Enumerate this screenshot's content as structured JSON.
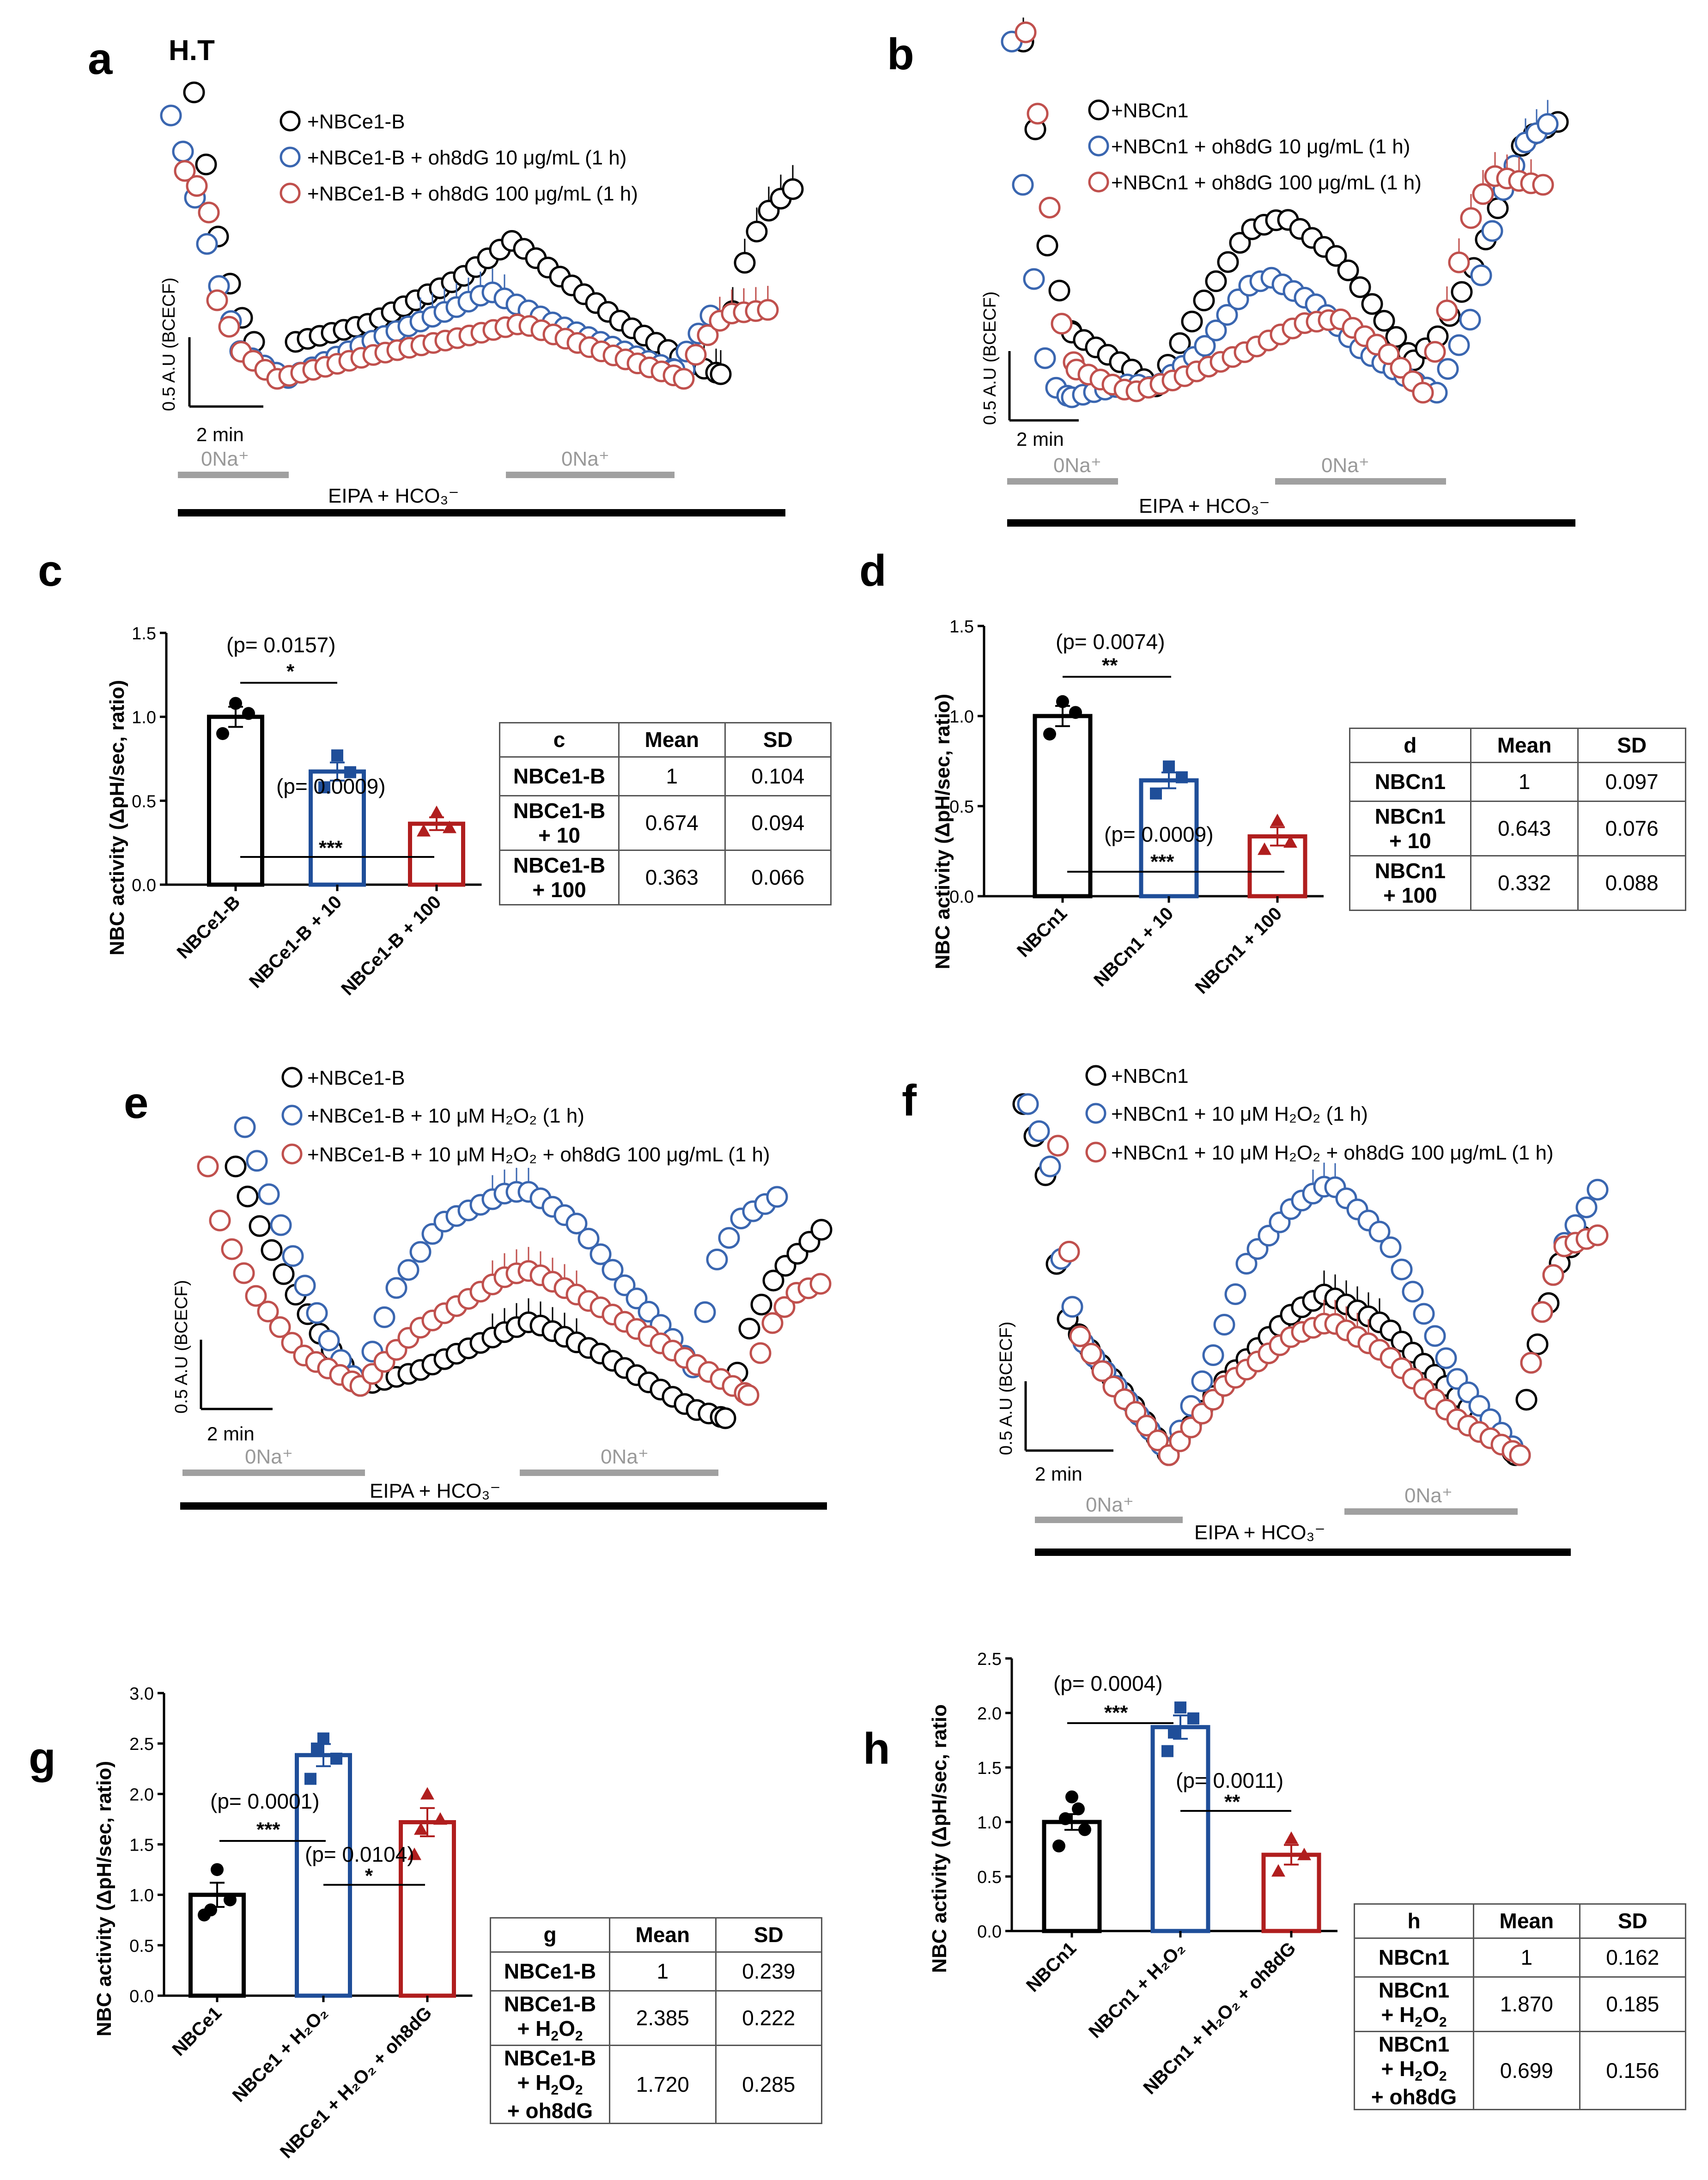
{
  "colors": {
    "black": "#000000",
    "blue": "#3a66b0",
    "red": "#c0504d",
    "blue_dark": "#1f4e99",
    "red_dark": "#b01e1e",
    "gray": "#a0a0a0"
  },
  "traces": [
    {
      "label": "a",
      "subtitle": "H.T",
      "legend": [
        "+NBCe1-B",
        "+NBCe1-B + oh8dG 10 μg/mL  (1 h)",
        "+NBCe1-B + oh8dG 100 μg/mL (1 h)"
      ],
      "scale_y": "0.5 A.U (BCECF)",
      "scale_x": "2 min",
      "bar1": "0Na⁺",
      "bar2": "0Na⁺",
      "bottom": "EIPA + HCO₃⁻"
    },
    {
      "label": "b",
      "legend": [
        "+NBCn1",
        "+NBCn1 + oh8dG 10 μg/mL (1 h)",
        "+NBCn1 + oh8dG 100 μg/mL (1 h)"
      ],
      "scale_y": "0.5 A.U (BCECF)",
      "scale_x": "2 min",
      "bar1": "0Na⁺",
      "bar2": "0Na⁺",
      "bottom": "EIPA + HCO₃⁻"
    },
    {
      "label": "e",
      "legend": [
        "+NBCe1-B",
        "+NBCe1-B + 10 μM H₂O₂ (1 h)",
        "+NBCe1-B + 10 μM H₂O₂ + oh8dG 100 μg/mL (1 h)"
      ],
      "scale_y": "0.5 A.U (BCECF)",
      "scale_x": "2 min",
      "bar1": "0Na⁺",
      "bar2": "0Na⁺",
      "bottom": "EIPA + HCO₃⁻"
    },
    {
      "label": "f",
      "legend": [
        "+NBCn1",
        "+NBCn1 + 10 μM H₂O₂ (1 h)",
        "+NBCn1 + 10 μM H₂O₂ + oh8dG 100 μg/mL (1 h)"
      ],
      "scale_y": "0.5 A.U (BCECF)",
      "scale_x": "2 min",
      "bar1": "0Na⁺",
      "bar2": "0Na⁺",
      "bottom": "EIPA + HCO₃⁻"
    }
  ],
  "chart_data": [
    {
      "type": "bar",
      "panel": "c",
      "ylabel": "NBC activity  (ΔpH/sec, ratio)",
      "ylim": [
        0,
        1.5
      ],
      "yticks": [
        "0.0",
        "0.5",
        "1.0",
        "1.5"
      ],
      "categories": [
        "NBCe1-B",
        "NBCe1-B + 10",
        "NBCe1-B + 100"
      ],
      "values": [
        1.0,
        0.674,
        0.363
      ],
      "sem": [
        0.06,
        0.054,
        0.038
      ],
      "points": [
        [
          0.9,
          1.08,
          1.02
        ],
        [
          0.58,
          0.77,
          0.67
        ],
        [
          0.32,
          0.43,
          0.34
        ]
      ],
      "annotations": [
        {
          "pvalue": "(p= 0.0157)",
          "stars": "*"
        },
        {
          "pvalue": "(p= 0.0009)",
          "stars": "***"
        }
      ]
    },
    {
      "type": "bar",
      "panel": "d",
      "ylabel": "NBC activity  (ΔpH/sec, ratio)",
      "ylim": [
        0,
        1.5
      ],
      "yticks": [
        "0.0",
        "0.5",
        "1.0",
        "1.5"
      ],
      "categories": [
        "NBCn1",
        "NBCn1 + 10",
        "NBCn1 + 100"
      ],
      "values": [
        1.0,
        0.643,
        0.332
      ],
      "sem": [
        0.056,
        0.044,
        0.051
      ],
      "points": [
        [
          0.9,
          1.08,
          1.02
        ],
        [
          0.57,
          0.72,
          0.66
        ],
        [
          0.26,
          0.42,
          0.3
        ]
      ],
      "annotations": [
        {
          "pvalue": "(p= 0.0074)",
          "stars": "**"
        },
        {
          "pvalue": "(p= 0.0009)",
          "stars": "***"
        }
      ]
    },
    {
      "type": "bar",
      "panel": "g",
      "ylabel": "NBC activity  (ΔpH/sec, ratio)",
      "ylim": [
        0,
        3.0
      ],
      "yticks": [
        "0.0",
        "0.5",
        "1.0",
        "1.5",
        "2.0",
        "2.5",
        "3.0"
      ],
      "categories": [
        "NBCe1",
        "NBCe1 + H₂O₂",
        "NBCe1 + H₂O₂ + oh8dG"
      ],
      "values": [
        1.0,
        2.385,
        1.72
      ],
      "sem": [
        0.12,
        0.11,
        0.14
      ],
      "points": [
        [
          0.8,
          1.25,
          0.95,
          0.85
        ],
        [
          2.15,
          2.55,
          2.35,
          2.45
        ],
        [
          1.4,
          2.0,
          1.75,
          1.65
        ]
      ],
      "annotations": [
        {
          "pvalue": "(p= 0.0001)",
          "stars": "***"
        },
        {
          "pvalue": "(p= 0.0104)",
          "stars": "*"
        }
      ]
    },
    {
      "type": "bar",
      "panel": "h",
      "ylabel": "NBC activity  (ΔpH/sec, ratio",
      "ylim": [
        0,
        2.5
      ],
      "yticks": [
        "0.0",
        "0.5",
        "1.0",
        "1.5",
        "2.0",
        "2.5"
      ],
      "categories": [
        "NBCn1",
        "NBCn1 + H₂O₂",
        "NBCn1 + H₂O₂ + oh8dG"
      ],
      "values": [
        1.0,
        1.87,
        0.699
      ],
      "sem": [
        0.072,
        0.107,
        0.09
      ],
      "points": [
        [
          0.78,
          1.23,
          0.93,
          1.03,
          1.12
        ],
        [
          1.65,
          2.05,
          1.95,
          1.82
        ],
        [
          0.55,
          0.85,
          0.7
        ]
      ],
      "annotations": [
        {
          "pvalue": "(p= 0.0004)",
          "stars": "***"
        },
        {
          "pvalue": "(p= 0.0011)",
          "stars": "**"
        }
      ]
    }
  ],
  "tables": [
    {
      "panel": "c",
      "head": [
        "c",
        "Mean",
        "SD"
      ],
      "rows": [
        {
          "name": "NBCe1-B",
          "mean": "1",
          "sd": "0.104"
        },
        {
          "name": "NBCe1-B\n+ 10",
          "mean": "0.674",
          "sd": "0.094"
        },
        {
          "name": "NBCe1-B\n+ 100",
          "mean": "0.363",
          "sd": "0.066"
        }
      ]
    },
    {
      "panel": "d",
      "head": [
        "d",
        "Mean",
        "SD"
      ],
      "rows": [
        {
          "name": "NBCn1",
          "mean": "1",
          "sd": "0.097"
        },
        {
          "name": "NBCn1\n+ 10",
          "mean": "0.643",
          "sd": "0.076"
        },
        {
          "name": "NBCn1\n+ 100",
          "mean": "0.332",
          "sd": "0.088"
        }
      ]
    },
    {
      "panel": "g",
      "head": [
        "g",
        "Mean",
        "SD"
      ],
      "rows": [
        {
          "name": "NBCe1-B",
          "mean": "1",
          "sd": "0.239"
        },
        {
          "name": "NBCe1-B\n+ H₂O₂",
          "mean": "2.385",
          "sd": "0.222"
        },
        {
          "name": "NBCe1-B\n+ H₂O₂\n+ oh8dG",
          "mean": "1.720",
          "sd": "0.285"
        }
      ]
    },
    {
      "panel": "h",
      "head": [
        "h",
        "Mean",
        "SD"
      ],
      "rows": [
        {
          "name": "NBCn1",
          "mean": "1",
          "sd": "0.162"
        },
        {
          "name": "NBCn1\n+ H₂O₂",
          "mean": "1.870",
          "sd": "0.185"
        },
        {
          "name": "NBCn1\n+ H₂O₂\n+ oh8dG",
          "mean": "0.699",
          "sd": "0.156"
        }
      ]
    }
  ]
}
